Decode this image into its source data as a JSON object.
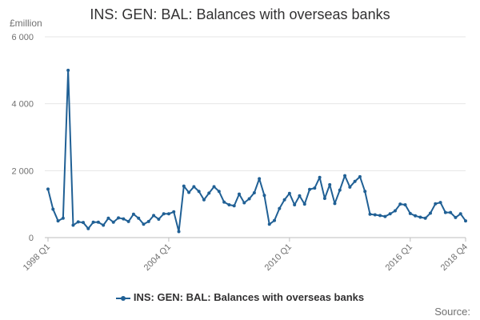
{
  "chart_data": {
    "type": "line",
    "title": "INS: GEN: BAL: Balances with overseas banks",
    "unit_label": "£million",
    "x_ticks": [
      "1998 Q1",
      "2004 Q1",
      "2010 Q1",
      "2016 Q1",
      "2018 Q4"
    ],
    "y_ticks": [
      "0",
      "2 000",
      "4 000",
      "6 000"
    ],
    "ylim": [
      0,
      6000
    ],
    "grid": "horizontal",
    "legend_placement": "bottom",
    "line_color": "#206095",
    "series": [
      {
        "name": "INS: GEN: BAL: Balances with overseas banks",
        "x": [
          "1998 Q1",
          "1998 Q2",
          "1998 Q3",
          "1998 Q4",
          "1999 Q1",
          "1999 Q2",
          "1999 Q3",
          "1999 Q4",
          "2000 Q1",
          "2000 Q2",
          "2000 Q3",
          "2000 Q4",
          "2001 Q1",
          "2001 Q2",
          "2001 Q3",
          "2001 Q4",
          "2002 Q1",
          "2002 Q2",
          "2002 Q3",
          "2002 Q4",
          "2003 Q1",
          "2003 Q2",
          "2003 Q3",
          "2003 Q4",
          "2004 Q1",
          "2004 Q2",
          "2004 Q3",
          "2004 Q4",
          "2005 Q1",
          "2005 Q2",
          "2005 Q3",
          "2005 Q4",
          "2006 Q1",
          "2006 Q2",
          "2006 Q3",
          "2006 Q4",
          "2007 Q1",
          "2007 Q2",
          "2007 Q3",
          "2007 Q4",
          "2008 Q1",
          "2008 Q2",
          "2008 Q3",
          "2008 Q4",
          "2009 Q1",
          "2009 Q2",
          "2009 Q3",
          "2009 Q4",
          "2010 Q1",
          "2010 Q2",
          "2010 Q3",
          "2010 Q4",
          "2011 Q1",
          "2011 Q2",
          "2011 Q3",
          "2011 Q4",
          "2012 Q1",
          "2012 Q2",
          "2012 Q3",
          "2012 Q4",
          "2013 Q1",
          "2013 Q2",
          "2013 Q3",
          "2013 Q4",
          "2014 Q1",
          "2014 Q2",
          "2014 Q3",
          "2014 Q4",
          "2015 Q1",
          "2015 Q2",
          "2015 Q3",
          "2015 Q4",
          "2016 Q1",
          "2016 Q2",
          "2016 Q3",
          "2016 Q4",
          "2017 Q1",
          "2017 Q2",
          "2017 Q3",
          "2017 Q4",
          "2018 Q1",
          "2018 Q2",
          "2018 Q3",
          "2018 Q4"
        ],
        "values": [
          1450,
          850,
          500,
          580,
          5000,
          370,
          470,
          450,
          270,
          460,
          460,
          370,
          580,
          460,
          590,
          560,
          480,
          700,
          580,
          400,
          480,
          660,
          550,
          710,
          710,
          770,
          180,
          1540,
          1350,
          1520,
          1380,
          1130,
          1330,
          1520,
          1380,
          1060,
          980,
          950,
          1300,
          1040,
          1160,
          1340,
          1760,
          1260,
          400,
          510,
          870,
          1130,
          1320,
          980,
          1250,
          1000,
          1440,
          1480,
          1800,
          1170,
          1580,
          1020,
          1420,
          1850,
          1510,
          1680,
          1820,
          1380,
          700,
          680,
          660,
          630,
          710,
          800,
          1000,
          980,
          720,
          650,
          610,
          580,
          730,
          1010,
          1050,
          750,
          750,
          600,
          710,
          500
        ]
      }
    ]
  },
  "legend": {
    "label": "INS: GEN: BAL: Balances with overseas banks"
  },
  "footer": {
    "source_label": "Source:"
  }
}
